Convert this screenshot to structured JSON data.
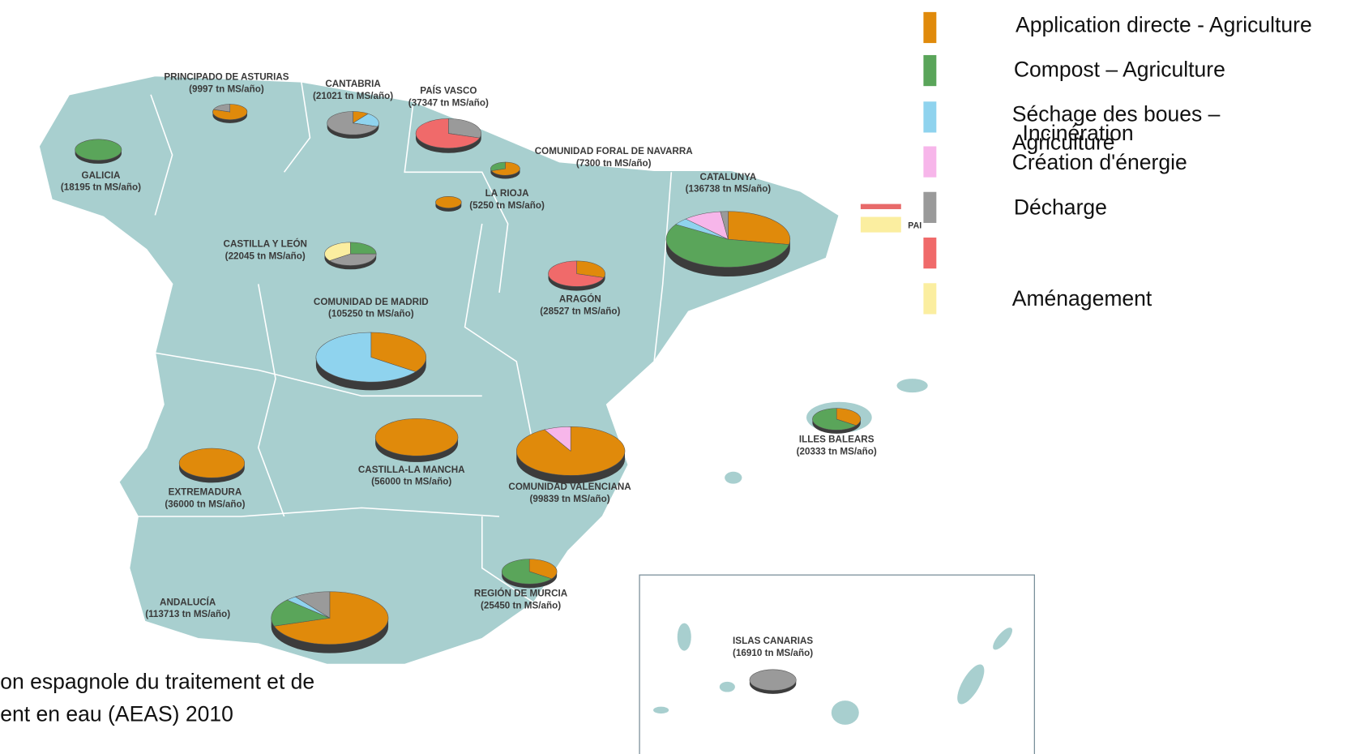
{
  "legend": [
    {
      "label": [
        "Application directe - Agriculture"
      ],
      "color": "#e08a0b"
    },
    {
      "label": [
        "Compost – Agriculture"
      ],
      "color": "#5aa55a"
    },
    {
      "label": [
        "Séchage des boues –",
        "Agriculture"
      ],
      "color": "#8fd3ee"
    },
    {
      "label": [
        "Création d'énergie"
      ],
      "color": "#f7b6ea"
    },
    {
      "label": [
        "Décharge"
      ],
      "color": "#9a9a9a"
    },
    {
      "label": [
        "Incinération"
      ],
      "color": "#f06a6a"
    },
    {
      "label": [
        "Aménagement"
      ],
      "color": "#fbeea0"
    }
  ],
  "regions": [
    {
      "name": "PRINCIPADO DE ASTURIAS",
      "amount": "(9997 tn MS/año)",
      "shares": [
        80,
        0,
        0,
        0,
        20,
        0,
        0
      ]
    },
    {
      "name": "CANTABRIA",
      "amount": "(21021 tn MS/año)",
      "shares": [
        10,
        0,
        20,
        0,
        70,
        0,
        0
      ]
    },
    {
      "name": "PAÍS VASCO",
      "amount": "(37347 tn MS/año)",
      "shares": [
        0,
        0,
        0,
        0,
        30,
        70,
        0
      ]
    },
    {
      "name": "GALICIA",
      "amount": "(18195 tn MS/año)",
      "shares": [
        0,
        100,
        0,
        0,
        0,
        0,
        0
      ]
    },
    {
      "name": "COMUNIDAD FORAL DE NAVARRA",
      "amount": "(7300 tn MS/año)",
      "shares": [
        70,
        30,
        0,
        0,
        0,
        0,
        0
      ]
    },
    {
      "name": "LA RIOJA",
      "amount": "(5250 tn MS/año)",
      "shares": [
        100,
        0,
        0,
        0,
        0,
        0,
        0
      ]
    },
    {
      "name": "CATALUNYA",
      "amount": "(136738 tn MS/año)",
      "shares": [
        28,
        56,
        4,
        10,
        2,
        0,
        0
      ]
    },
    {
      "name": "CASTILLA Y LEÓN",
      "amount": "(22045 tn MS/año)",
      "shares": [
        0,
        25,
        0,
        0,
        40,
        0,
        35
      ]
    },
    {
      "name": "ARAGÓN",
      "amount": "(28527 tn MS/año)",
      "shares": [
        30,
        0,
        0,
        0,
        0,
        70,
        0
      ]
    },
    {
      "name": "COMUNIDAD DE MADRID",
      "amount": "(105250 tn MS/año)",
      "shares": [
        35,
        0,
        65,
        0,
        0,
        0,
        0
      ]
    },
    {
      "name": "CASTILLA-LA MANCHA",
      "amount": "(56000 tn MS/año)",
      "shares": [
        100,
        0,
        0,
        0,
        0,
        0,
        0
      ]
    },
    {
      "name": "EXTREMADURA",
      "amount": "(36000 tn MS/año)",
      "shares": [
        100,
        0,
        0,
        0,
        0,
        0,
        0
      ]
    },
    {
      "name": "COMUNIDAD VALENCIANA",
      "amount": "(99839 tn MS/año)",
      "shares": [
        92,
        0,
        0,
        8,
        0,
        0,
        0
      ]
    },
    {
      "name": "ILLES BALEARS",
      "amount": "(20333 tn MS/año)",
      "shares": [
        35,
        65,
        0,
        0,
        0,
        0,
        0
      ]
    },
    {
      "name": "REGIÓN DE MURCIA",
      "amount": "(25450 tn MS/año)",
      "shares": [
        35,
        65,
        0,
        0,
        0,
        0,
        0
      ]
    },
    {
      "name": "ANDALUCÍA",
      "amount": "(113713 tn MS/año)",
      "shares": [
        70,
        17,
        3,
        0,
        10,
        0,
        0
      ]
    },
    {
      "name": "ISLAS CANARIAS",
      "amount": "(16910 tn MS/año)",
      "shares": [
        0,
        0,
        0,
        0,
        100,
        0,
        0
      ]
    }
  ],
  "fragments": [
    "PAI"
  ],
  "footer": [
    "on espagnole du traitement et de",
    "ent en eau (AEAS) 2010"
  ]
}
